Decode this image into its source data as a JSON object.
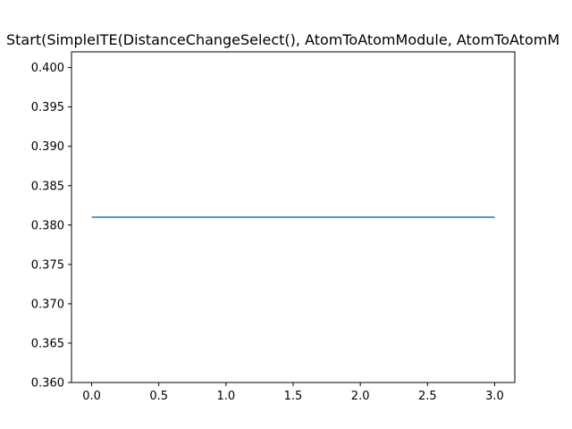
{
  "chart_data": {
    "type": "line",
    "title": "Start(SimpleITE(DistanceChangeSelect(), AtomToAtomModule, AtomToAtomM",
    "xlabel": "",
    "ylabel": "",
    "xlim": [
      -0.15,
      3.15
    ],
    "ylim": [
      0.36,
      0.402
    ],
    "x_ticks": [
      "0.0",
      "0.5",
      "1.0",
      "1.5",
      "2.0",
      "2.5",
      "3.0"
    ],
    "y_ticks": [
      "0.360",
      "0.365",
      "0.370",
      "0.375",
      "0.380",
      "0.385",
      "0.390",
      "0.395",
      "0.400"
    ],
    "grid": false,
    "series": [
      {
        "x": [
          0,
          1,
          2,
          3
        ],
        "values": [
          0.381,
          0.381,
          0.381,
          0.381
        ],
        "color": "#1f77b4"
      }
    ]
  }
}
